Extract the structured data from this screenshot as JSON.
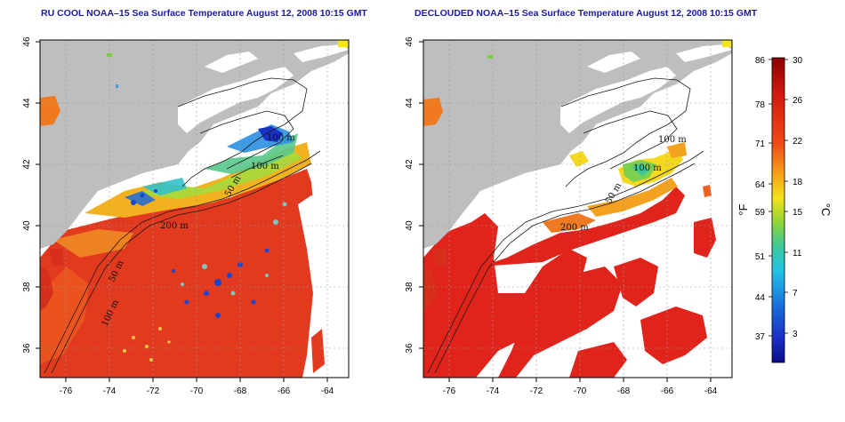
{
  "panels": [
    {
      "title": "RU COOL NOAA–15 Sea Surface Temperature August 12, 2008 10:15 GMT",
      "lat_ticks": [
        "36",
        "38",
        "40",
        "42",
        "44",
        "46"
      ],
      "lon_ticks": [
        "-76",
        "-74",
        "-72",
        "-70",
        "-68",
        "-66",
        "-64"
      ],
      "contour_labels": [
        "100 m",
        "100 m",
        "200 m",
        "50 m",
        "100 m",
        "50 m"
      ]
    },
    {
      "title": "DECLOUDED NOAA–15 Sea Surface Temperature August 12, 2008 10:15 GMT",
      "lat_ticks": [
        "36",
        "38",
        "40",
        "42",
        "44",
        "46"
      ],
      "lon_ticks": [
        "-76",
        "-74",
        "-72",
        "-70",
        "-68",
        "-66",
        "-64"
      ],
      "contour_labels": [
        "100 m",
        "100 m",
        "50 m",
        "200 m"
      ]
    }
  ],
  "colorbar": {
    "fahrenheit_ticks": [
      "86",
      "78",
      "71",
      "64",
      "59",
      "51",
      "44",
      "37"
    ],
    "celsius_ticks": [
      "30",
      "26",
      "22",
      "18",
      "15",
      "11",
      "7",
      "3"
    ],
    "fahrenheit_label": "°F",
    "celsius_label": "°C"
  },
  "colors": {
    "land": "#bebebe",
    "cloud": "#ffffff",
    "title": "#1a1aa6",
    "warm": "#e0301e",
    "cold": "#0a1a9c"
  }
}
